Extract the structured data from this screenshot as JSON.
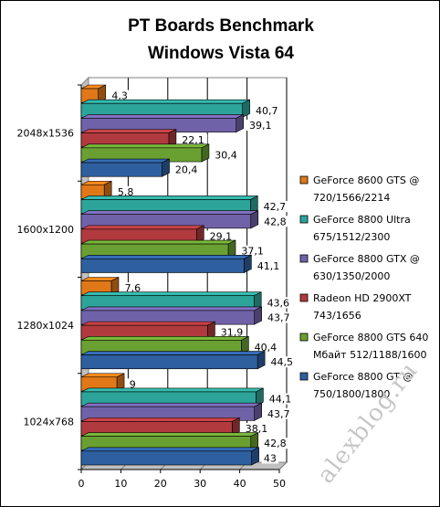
{
  "chart_data": {
    "type": "bar",
    "orientation": "horizontal",
    "title": "PT Boards Benchmark",
    "subtitle": "Windows Vista 64",
    "xlim": [
      0,
      50
    ],
    "x_ticks": [
      0,
      10,
      20,
      30,
      40,
      50
    ],
    "grid": true,
    "legend_position": "right",
    "categories": [
      "2048x1536",
      "1600x1200",
      "1280x1024",
      "1024x768"
    ],
    "series": [
      {
        "name": "GeForce 8600 GTS @ 720/1566/2214",
        "legend_lines": [
          "GeForce 8600 GTS @",
          "720/1566/2214"
        ],
        "color": "#e07818",
        "values": [
          4.3,
          5.8,
          7.6,
          9
        ],
        "labels": [
          "4,3",
          "5,8",
          "7,6",
          "9"
        ]
      },
      {
        "name": "GeForce 8800 Ultra 675/1512/2300",
        "legend_lines": [
          "GeForce 8800 Ultra",
          "675/1512/2300"
        ],
        "color": "#2ca49a",
        "values": [
          40.7,
          42.7,
          43.6,
          44.1
        ],
        "labels": [
          "40,7",
          "42,7",
          "43,6",
          "44,1"
        ]
      },
      {
        "name": "GeForce 8800 GTX @ 630/1350/2000",
        "legend_lines": [
          "GeForce 8800 GTX @",
          "630/1350/2000"
        ],
        "color": "#7062a8",
        "values": [
          39.1,
          42.8,
          43.7,
          43.7
        ],
        "labels": [
          "39,1",
          "42,8",
          "43,7",
          "43,7"
        ]
      },
      {
        "name": "Radeon HD 2900XT 743/1656",
        "legend_lines": [
          "Radeon HD 2900XT",
          "743/1656"
        ],
        "color": "#b03a3e",
        "values": [
          22.1,
          29.1,
          31.9,
          38.1
        ],
        "labels": [
          "22,1",
          "29,1",
          "31,9",
          "38,1"
        ]
      },
      {
        "name": "GeForce 8800 GTS 640 Мбайт 512/1188/1600",
        "legend_lines": [
          "GeForce 8800 GTS 640",
          "Мбайт 512/1188/1600"
        ],
        "color": "#6aa032",
        "values": [
          30.4,
          37.1,
          40.4,
          42.8
        ],
        "labels": [
          "30,4",
          "37,1",
          "40,4",
          "42,8"
        ]
      },
      {
        "name": "GeForce 8800 GT @ 750/1800/1800",
        "legend_lines": [
          "GeForce 8800 GT @",
          "750/1800/1800"
        ],
        "color": "#2e5f9e",
        "values": [
          20.4,
          41.1,
          44.5,
          43
        ],
        "labels": [
          "20,4",
          "41,1",
          "44,5",
          "43"
        ]
      }
    ]
  },
  "watermark": "alexblog.ru"
}
